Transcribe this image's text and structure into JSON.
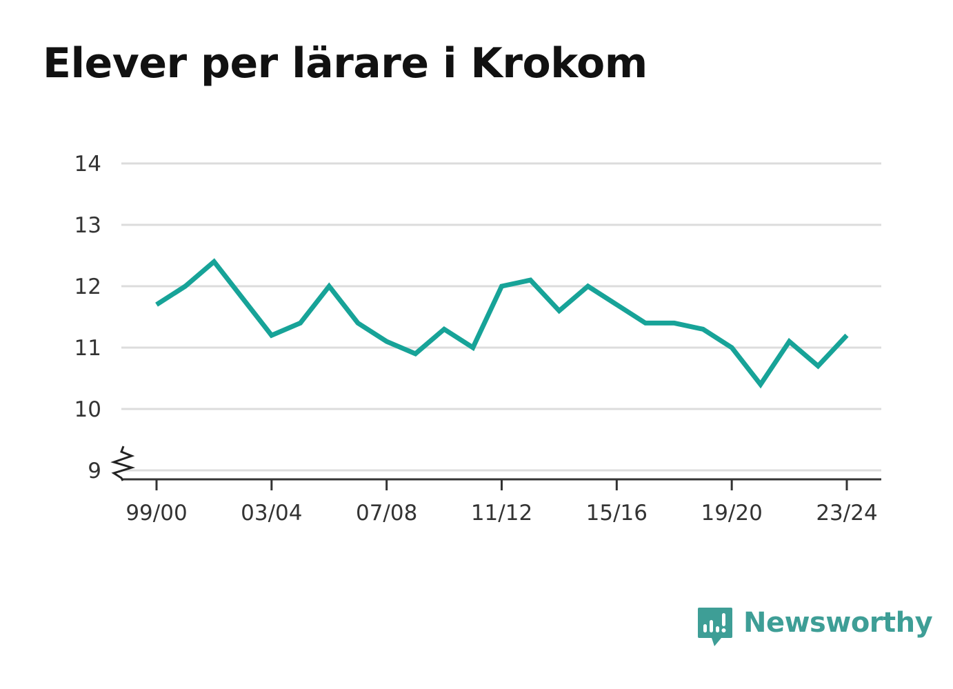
{
  "brand": {
    "name": "Newsworthy",
    "logo_icon": "newsworthy-bar-chart-speech-bubble-icon",
    "color": "#3e9e96"
  },
  "chart_data": {
    "type": "line",
    "title": "Elever per lärare i Krokom",
    "xlabel": "",
    "ylabel": "",
    "ylim": [
      9,
      14
    ],
    "yticks": [
      9,
      10,
      11,
      12,
      13,
      14
    ],
    "y_axis_break": true,
    "grid": true,
    "line_color": "#17a398",
    "categories": [
      "99/00",
      "00/01",
      "01/02",
      "02/03",
      "03/04",
      "04/05",
      "05/06",
      "06/07",
      "07/08",
      "08/09",
      "09/10",
      "10/11",
      "11/12",
      "12/13",
      "13/14",
      "14/15",
      "15/16",
      "16/17",
      "17/18",
      "18/19",
      "19/20",
      "20/21",
      "21/22",
      "22/23",
      "23/24"
    ],
    "xtick_labels": [
      "99/00",
      "03/04",
      "07/08",
      "11/12",
      "15/16",
      "19/20",
      "23/24"
    ],
    "series": [
      {
        "values": [
          11.7,
          12.0,
          12.4,
          11.8,
          11.2,
          11.4,
          12.0,
          11.4,
          11.1,
          10.9,
          11.3,
          11.0,
          12.0,
          12.1,
          11.6,
          12.0,
          11.7,
          11.4,
          11.4,
          11.3,
          11.0,
          10.4,
          11.1,
          10.7,
          11.2
        ]
      }
    ]
  }
}
